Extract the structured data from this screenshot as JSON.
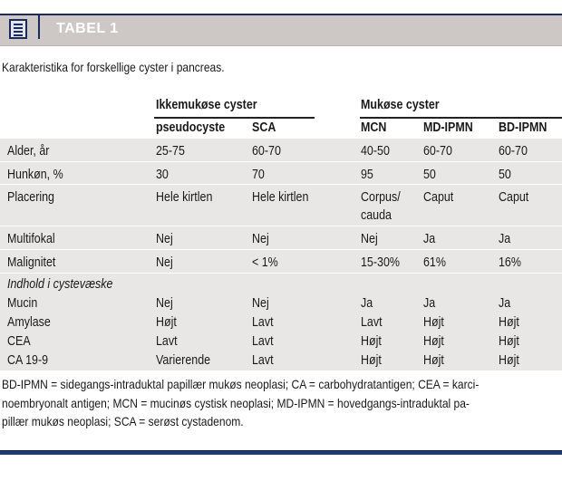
{
  "header": {
    "title": "TABEL 1",
    "icon": "table-list-icon"
  },
  "caption": "Karakteristika for forskellige cyster i pancreas.",
  "groups": [
    "Ikkemukøse cyster",
    "Mukøse cyster"
  ],
  "columns": [
    "pseudocyste",
    "SCA",
    "MCN",
    "MD-IPMN",
    "BD-IPMN"
  ],
  "rows": [
    {
      "label": "Alder, år",
      "values": [
        "25-75",
        "60-70",
        "40-50",
        "60-70",
        "60-70"
      ]
    },
    {
      "label": "Hunkøn, %",
      "values": [
        "30",
        "70",
        "95",
        "50",
        "50"
      ]
    },
    {
      "label": "Placering",
      "values": [
        "Hele kirtlen",
        "Hele kirtlen",
        "Corpus/ cauda",
        "Caput",
        "Caput"
      ]
    },
    {
      "label": "Multifokal",
      "values": [
        "Nej",
        "Nej",
        "Nej",
        "Ja",
        "Ja"
      ]
    },
    {
      "label": "Malignitet",
      "values": [
        "Nej",
        "< 1%",
        "15-30%",
        "61%",
        "16%"
      ]
    }
  ],
  "section": {
    "title": "Indhold i cystevæske",
    "rows": [
      {
        "label": "Mucin",
        "values": [
          "Nej",
          "Nej",
          "Ja",
          "Ja",
          "Ja"
        ]
      },
      {
        "label": "Amylase",
        "values": [
          "Højt",
          "Lavt",
          "Lavt",
          "Højt",
          "Højt"
        ]
      },
      {
        "label": "CEA",
        "values": [
          "Lavt",
          "Lavt",
          "Højt",
          "Højt",
          "Højt"
        ]
      },
      {
        "label": "CA 19-9",
        "values": [
          "Varierende",
          "Lavt",
          "Højt",
          "Højt",
          "Højt"
        ]
      }
    ]
  },
  "footnote": [
    "BD-IPMN = sidegangs-intraduktal papillær mukøs neoplasi; CA = carbohydratantigen; CEA = karci-",
    "noembryonalt antigen; MCN = mucinøs cystisk neoplasi; MD-IPMN = hovedgangs-intraduktal pa-",
    "pillær mukøs neoplasi; SCA = serøst cystadenom."
  ],
  "colors": {
    "navy": "#1d2b5a",
    "header_bg": "#cdc8c5",
    "row_bg": "#e9e7e5"
  }
}
